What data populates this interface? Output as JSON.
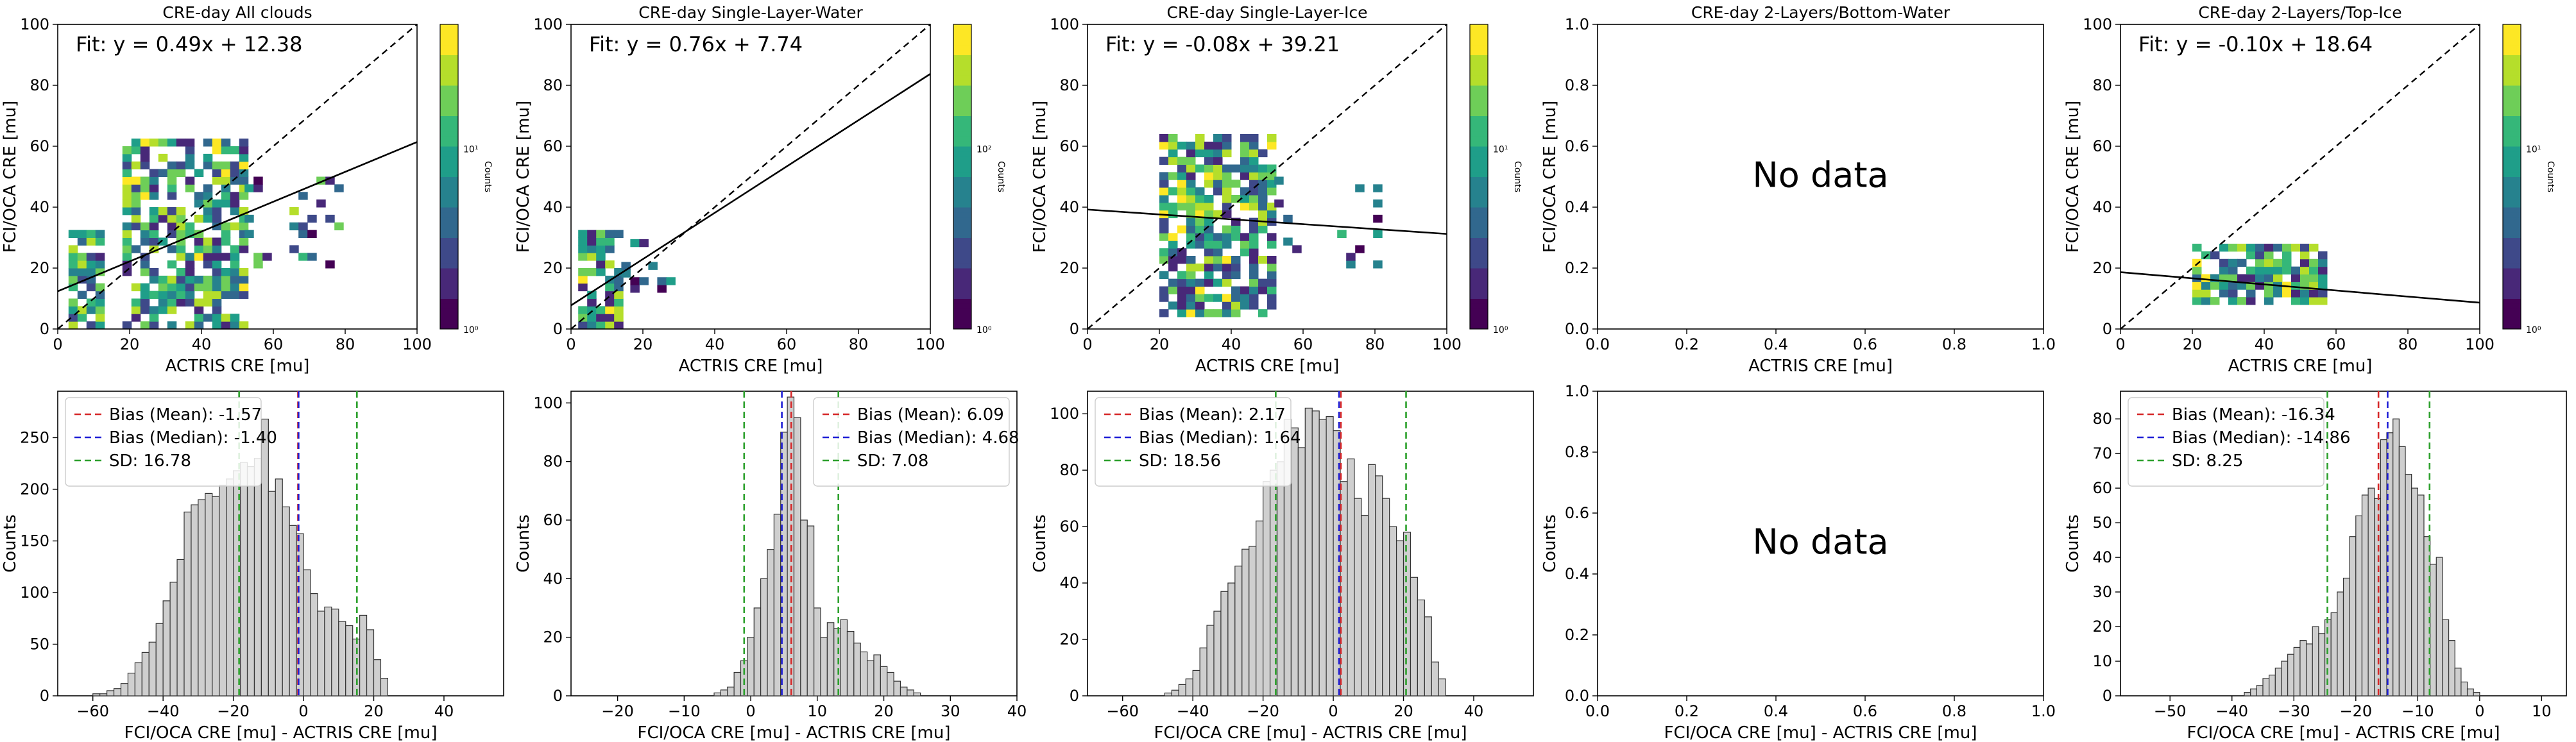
{
  "chart_data": [
    {
      "type": "heatmap",
      "title": "CRE-day All clouds",
      "xlabel": "ACTRIS CRE [mu]",
      "ylabel": "FCI/OCA CRE [mu]",
      "xlim": [
        0,
        100
      ],
      "ylim": [
        0,
        100
      ],
      "xticks": [
        0,
        20,
        40,
        60,
        80,
        100
      ],
      "yticks": [
        0,
        20,
        40,
        60,
        80,
        100
      ],
      "fit_text": "Fit: y = 0.49x + 12.38",
      "fit": {
        "slope": 0.49,
        "intercept": 12.38
      },
      "one_to_one": true,
      "colorbar": {
        "label": "Counts",
        "min_label": "10⁰",
        "mid_label": "10¹",
        "scale": "log",
        "colormap": "viridis"
      },
      "clusters": [
        {
          "x": [
            3,
            12
          ],
          "y": [
            0,
            32
          ],
          "density": 0.75
        },
        {
          "x": [
            18,
            52
          ],
          "y": [
            0,
            62
          ],
          "density": 0.7
        },
        {
          "x": [
            52,
            78
          ],
          "y": [
            20,
            50
          ],
          "density": 0.15
        }
      ]
    },
    {
      "type": "heatmap",
      "title": "CRE-day Single-Layer-Water",
      "xlabel": "ACTRIS CRE [mu]",
      "ylabel": "FCI/OCA CRE [mu]",
      "xlim": [
        0,
        100
      ],
      "ylim": [
        0,
        100
      ],
      "xticks": [
        0,
        20,
        40,
        60,
        80,
        100
      ],
      "yticks": [
        0,
        20,
        40,
        60,
        80,
        100
      ],
      "fit_text": "Fit: y = 0.76x + 7.74",
      "fit": {
        "slope": 0.76,
        "intercept": 7.74
      },
      "one_to_one": true,
      "colorbar": {
        "label": "Counts",
        "min_label": "10⁰",
        "mid_label": "10²",
        "scale": "log",
        "colormap": "viridis"
      },
      "clusters": [
        {
          "x": [
            2,
            14
          ],
          "y": [
            0,
            32
          ],
          "density": 0.8
        },
        {
          "x": [
            14,
            28
          ],
          "y": [
            12,
            28
          ],
          "density": 0.35
        }
      ]
    },
    {
      "type": "heatmap",
      "title": "CRE-day Single-Layer-Ice",
      "xlabel": "ACTRIS CRE [mu]",
      "ylabel": "FCI/OCA CRE [mu]",
      "xlim": [
        0,
        100
      ],
      "ylim": [
        0,
        100
      ],
      "xticks": [
        0,
        20,
        40,
        60,
        80,
        100
      ],
      "yticks": [
        0,
        20,
        40,
        60,
        80,
        100
      ],
      "fit_text": "Fit: y = -0.08x + 39.21",
      "fit": {
        "slope": -0.08,
        "intercept": 39.21
      },
      "one_to_one": true,
      "colorbar": {
        "label": "Counts",
        "min_label": "10⁰",
        "mid_label": "10¹",
        "scale": "log",
        "colormap": "viridis"
      },
      "clusters": [
        {
          "x": [
            20,
            52
          ],
          "y": [
            4,
            62
          ],
          "density": 0.75
        },
        {
          "x": [
            52,
            80
          ],
          "y": [
            20,
            50
          ],
          "density": 0.15
        }
      ]
    },
    {
      "type": "heatmap",
      "title": "CRE-day 2-Layers/Bottom-Water",
      "xlabel": "ACTRIS CRE [mu]",
      "ylabel": "FCI/OCA CRE [mu]",
      "xlim": [
        0,
        1
      ],
      "ylim": [
        0,
        1
      ],
      "xticks": [
        0.0,
        0.2,
        0.4,
        0.6,
        0.8,
        1.0
      ],
      "yticks": [
        0.0,
        0.2,
        0.4,
        0.6,
        0.8,
        1.0
      ],
      "no_data_text": "No data"
    },
    {
      "type": "heatmap",
      "title": "CRE-day 2-Layers/Top-Ice",
      "xlabel": "ACTRIS CRE [mu]",
      "ylabel": "FCI/OCA CRE [mu]",
      "xlim": [
        0,
        100
      ],
      "ylim": [
        0,
        100
      ],
      "xticks": [
        0,
        20,
        40,
        60,
        80,
        100
      ],
      "yticks": [
        0,
        20,
        40,
        60,
        80,
        100
      ],
      "fit_text": "Fit: y = -0.10x + 18.64",
      "fit": {
        "slope": -0.1,
        "intercept": 18.64
      },
      "one_to_one": true,
      "colorbar": {
        "label": "Counts",
        "min_label": "10⁰",
        "mid_label": "10¹",
        "scale": "log",
        "colormap": "viridis"
      },
      "clusters": [
        {
          "x": [
            20,
            56
          ],
          "y": [
            8,
            26
          ],
          "density": 0.8
        }
      ]
    },
    {
      "type": "bar",
      "title": "",
      "xlabel": "FCI/OCA CRE [mu] - ACTRIS CRE [mu]",
      "ylabel": "Counts",
      "xlim": [
        -70,
        57
      ],
      "ylim": [
        0,
        295
      ],
      "xticks": [
        -60,
        -40,
        -20,
        0,
        20,
        40
      ],
      "yticks": [
        0,
        50,
        100,
        150,
        200,
        250
      ],
      "bin_start": -60,
      "bin_width": 2,
      "counts": [
        2,
        2,
        5,
        7,
        12,
        22,
        32,
        42,
        52,
        70,
        92,
        110,
        132,
        178,
        185,
        190,
        196,
        193,
        204,
        210,
        218,
        226,
        222,
        230,
        268,
        198,
        210,
        183,
        165,
        157,
        122,
        99,
        82,
        86,
        84,
        72,
        68,
        55,
        78,
        64,
        35,
        17
      ],
      "lines": [
        {
          "label": "Bias (Mean): -1.57",
          "x": -1.57,
          "color": "#d62728"
        },
        {
          "label": "Bias (Median): -1.40",
          "x": -1.4,
          "color": "#1f1fd6"
        },
        {
          "label": "SD: 16.78",
          "x": -18.35,
          "color": "#2ca02c"
        },
        {
          "label": "",
          "x": 15.21,
          "color": "#2ca02c"
        }
      ],
      "legend_position": "upper-left"
    },
    {
      "type": "bar",
      "title": "",
      "xlabel": "FCI/OCA CRE [mu] - ACTRIS CRE [mu]",
      "ylabel": "Counts",
      "xlim": [
        -27,
        40
      ],
      "ylim": [
        0,
        104
      ],
      "xticks": [
        -20,
        -10,
        0,
        10,
        20,
        30,
        40
      ],
      "yticks": [
        0,
        20,
        40,
        60,
        80,
        100
      ],
      "bin_start": -5.5,
      "bin_width": 1,
      "counts": [
        1,
        2,
        3,
        8,
        12,
        20,
        30,
        40,
        50,
        62,
        90,
        102,
        95,
        60,
        58,
        30,
        20,
        25,
        23,
        26,
        22,
        18,
        15,
        12,
        14,
        10,
        8,
        5,
        3,
        2,
        1
      ],
      "lines": [
        {
          "label": "Bias (Mean): 6.09",
          "x": 6.09,
          "color": "#d62728"
        },
        {
          "label": "Bias (Median): 4.68",
          "x": 4.68,
          "color": "#1f1fd6"
        },
        {
          "label": "SD: 7.08",
          "x": -0.99,
          "color": "#2ca02c"
        },
        {
          "label": "",
          "x": 13.17,
          "color": "#2ca02c"
        }
      ],
      "legend_position": "upper-right"
    },
    {
      "type": "bar",
      "title": "",
      "xlabel": "FCI/OCA CRE [mu] - ACTRIS CRE [mu]",
      "ylabel": "Counts",
      "xlim": [
        -70,
        57
      ],
      "ylim": [
        0,
        108
      ],
      "xticks": [
        -60,
        -40,
        -20,
        0,
        20,
        40
      ],
      "yticks": [
        0,
        20,
        40,
        60,
        80,
        100
      ],
      "bin_start": -48,
      "bin_width": 2,
      "counts": [
        1,
        2,
        4,
        6,
        9,
        17,
        25,
        30,
        37,
        40,
        46,
        52,
        53,
        62,
        76,
        80,
        83,
        98,
        95,
        88,
        102,
        101,
        98,
        99,
        94,
        76,
        84,
        70,
        64,
        82,
        78,
        70,
        60,
        55,
        58,
        42,
        34,
        28,
        12,
        6
      ],
      "lines": [
        {
          "label": "Bias (Mean): 2.17",
          "x": 2.17,
          "color": "#d62728"
        },
        {
          "label": "Bias (Median): 1.64",
          "x": 1.64,
          "color": "#1f1fd6"
        },
        {
          "label": "SD: 18.56",
          "x": -16.39,
          "color": "#2ca02c"
        },
        {
          "label": "",
          "x": 20.73,
          "color": "#2ca02c"
        }
      ],
      "legend_position": "upper-left"
    },
    {
      "type": "bar",
      "title": "",
      "xlabel": "FCI/OCA CRE [mu] - ACTRIS CRE [mu]",
      "ylabel": "Counts",
      "xlim": [
        0,
        1
      ],
      "ylim": [
        0,
        1
      ],
      "xticks": [
        0.0,
        0.2,
        0.4,
        0.6,
        0.8,
        1.0
      ],
      "yticks": [
        0.0,
        0.2,
        0.4,
        0.6,
        0.8,
        1.0
      ],
      "no_data_text": "No data"
    },
    {
      "type": "bar",
      "title": "",
      "xlabel": "FCI/OCA CRE [mu] - ACTRIS CRE [mu]",
      "ylabel": "Counts",
      "xlim": [
        -58,
        14
      ],
      "ylim": [
        0,
        88
      ],
      "xticks": [
        -50,
        -40,
        -30,
        -20,
        -10,
        0,
        10
      ],
      "yticks": [
        0,
        10,
        20,
        30,
        40,
        50,
        60,
        70,
        80
      ],
      "bin_start": -38,
      "bin_width": 1,
      "counts": [
        1,
        2,
        3,
        5,
        6,
        8,
        10,
        12,
        14,
        16,
        15,
        20,
        18,
        22,
        24,
        30,
        34,
        46,
        52,
        58,
        60,
        57,
        74,
        76,
        80,
        72,
        64,
        60,
        58,
        46,
        38,
        40,
        22,
        16,
        8,
        4,
        2,
        1
      ],
      "lines": [
        {
          "label": "Bias (Mean): -16.34",
          "x": -16.34,
          "color": "#d62728"
        },
        {
          "label": "Bias (Median): -14.86",
          "x": -14.86,
          "color": "#1f1fd6"
        },
        {
          "label": "SD: 8.25",
          "x": -24.59,
          "color": "#2ca02c"
        },
        {
          "label": "",
          "x": -8.09,
          "color": "#2ca02c"
        }
      ],
      "legend_position": "upper-left"
    }
  ]
}
